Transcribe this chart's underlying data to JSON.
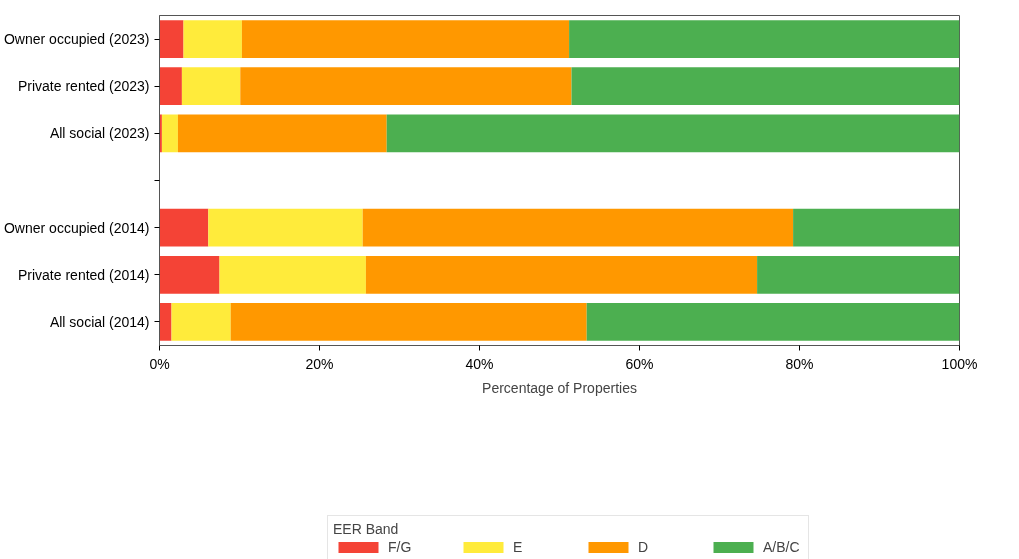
{
  "chart_data": {
    "type": "bar",
    "orientation": "horizontal",
    "stacked": true,
    "categories": [
      "Owner occupied (2023)",
      "Private rented (2023)",
      "All social (2023)",
      null,
      "Owner occupied (2014)",
      "Private rented (2014)",
      "All social (2014)"
    ],
    "series": [
      {
        "name": "F/G",
        "color": "#f44336",
        "values": [
          3.0,
          2.8,
          0.3,
          null,
          6.1,
          7.5,
          1.5
        ]
      },
      {
        "name": "E",
        "color": "#ffeb3b",
        "values": [
          7.3,
          7.3,
          2.0,
          null,
          19.3,
          18.3,
          7.4
        ]
      },
      {
        "name": "D",
        "color": "#ff9800",
        "values": [
          40.9,
          41.4,
          26.1,
          null,
          53.8,
          48.9,
          44.5
        ]
      },
      {
        "name": "A/B/C",
        "color": "#4caf50",
        "values": [
          48.8,
          48.5,
          71.6,
          null,
          20.8,
          25.3,
          46.6
        ]
      }
    ],
    "xlabel": "Percentage of Properties",
    "legend_title": "EER Band",
    "legend": "bottom",
    "grid": false,
    "xlim": [
      0,
      100
    ],
    "xticks": [
      {
        "value": 0,
        "label": "0%"
      },
      {
        "value": 20,
        "label": "20%"
      },
      {
        "value": 40,
        "label": "40%"
      },
      {
        "value": 60,
        "label": "60%"
      },
      {
        "value": 80,
        "label": "80%"
      },
      {
        "value": 100,
        "label": "100%"
      }
    ]
  }
}
